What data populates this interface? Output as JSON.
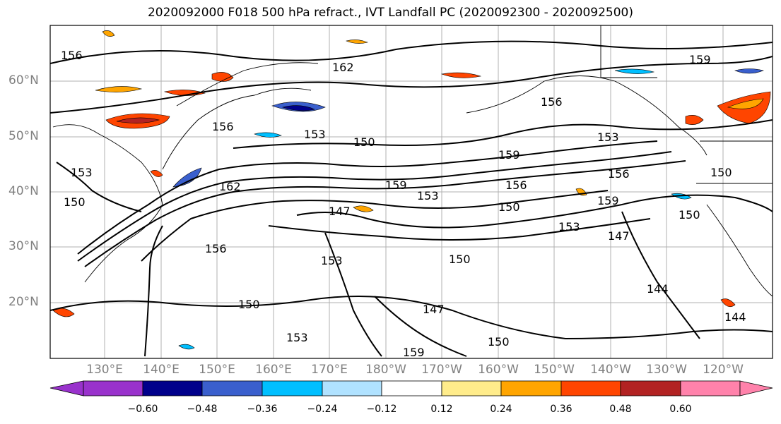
{
  "title": "2020092000 F018 500 hPa refract., IVT Landfall PC (2020092300 - 2020092500)",
  "lat_labels": [
    "60°N",
    "50°N",
    "40°N",
    "30°N",
    "20°N"
  ],
  "lon_labels": [
    "130°E",
    "140°E",
    "150°E",
    "160°E",
    "170°E",
    "180°W",
    "170°W",
    "160°W",
    "150°W",
    "140°W",
    "130°W",
    "120°W"
  ],
  "contour_labels": [
    "156",
    "162",
    "159",
    "153",
    "150",
    "156",
    "153",
    "150",
    "156",
    "162",
    "159",
    "153",
    "156",
    "150",
    "147",
    "156",
    "153",
    "159",
    "150",
    "153",
    "150",
    "147",
    "156",
    "150",
    "159",
    "153",
    "150",
    "147",
    "144",
    "144",
    "150",
    "153",
    "159"
  ],
  "colorbar": {
    "ticks": [
      "−0.60",
      "−0.48",
      "−0.36",
      "−0.24",
      "−0.12",
      "0.12",
      "0.24",
      "0.36",
      "0.48",
      "0.60"
    ],
    "colors": [
      "#9932CC",
      "#00008B",
      "#3A5FCD",
      "#00BFFF",
      "#B0E2FF",
      "#FFFFFF",
      "#FFEC8B",
      "#FFA500",
      "#FF4500",
      "#B22222",
      "#FF82AB"
    ]
  }
}
